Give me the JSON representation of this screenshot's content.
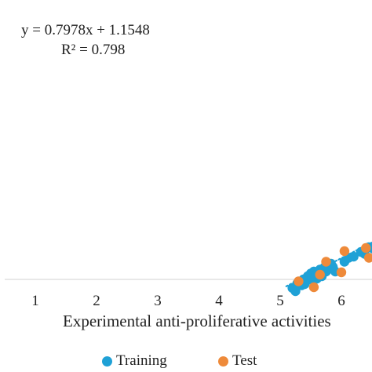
{
  "chart_data": {
    "type": "scatter",
    "xlabel": "Experimental anti-proliferative activities",
    "ylabel": "",
    "xticks": [
      1,
      2,
      3,
      4,
      5,
      6
    ],
    "xlim": [
      0.5,
      7.0
    ],
    "ylim": [
      0.0,
      7.0
    ],
    "grid": false,
    "legend_position": "bottom",
    "trendline": {
      "equation": "y = 0.7978x + 1.1548",
      "r_squared": "R² = 0.798",
      "slope": 0.7978,
      "intercept": 1.1548,
      "series": "Training"
    },
    "series": [
      {
        "name": "Training",
        "color": "#1fa1d6",
        "points": [
          {
            "x": 5.2,
            "y": 5.18
          },
          {
            "x": 5.28,
            "y": 5.3
          },
          {
            "x": 5.35,
            "y": 5.25
          },
          {
            "x": 5.38,
            "y": 5.4
          },
          {
            "x": 5.42,
            "y": 5.35
          },
          {
            "x": 5.45,
            "y": 5.48
          },
          {
            "x": 5.48,
            "y": 5.4
          },
          {
            "x": 5.5,
            "y": 5.55
          },
          {
            "x": 5.52,
            "y": 5.45
          },
          {
            "x": 5.55,
            "y": 5.6
          },
          {
            "x": 5.58,
            "y": 5.5
          },
          {
            "x": 5.6,
            "y": 5.42
          },
          {
            "x": 5.62,
            "y": 5.58
          },
          {
            "x": 5.65,
            "y": 5.65
          },
          {
            "x": 5.66,
            "y": 5.52
          },
          {
            "x": 5.7,
            "y": 5.62
          },
          {
            "x": 5.72,
            "y": 5.7
          },
          {
            "x": 5.75,
            "y": 5.6
          },
          {
            "x": 5.78,
            "y": 5.75
          },
          {
            "x": 5.8,
            "y": 5.68
          },
          {
            "x": 5.83,
            "y": 5.8
          },
          {
            "x": 5.86,
            "y": 5.72
          },
          {
            "x": 5.4,
            "y": 5.28
          },
          {
            "x": 5.55,
            "y": 5.38
          },
          {
            "x": 5.68,
            "y": 5.48
          },
          {
            "x": 6.05,
            "y": 5.85
          },
          {
            "x": 6.12,
            "y": 5.95
          },
          {
            "x": 6.2,
            "y": 5.98
          },
          {
            "x": 6.32,
            "y": 6.1
          },
          {
            "x": 6.38,
            "y": 6.05
          },
          {
            "x": 6.45,
            "y": 6.22
          },
          {
            "x": 6.52,
            "y": 6.18
          },
          {
            "x": 6.62,
            "y": 6.32
          },
          {
            "x": 5.25,
            "y": 5.1
          },
          {
            "x": 5.9,
            "y": 5.6
          }
        ]
      },
      {
        "name": "Test",
        "color": "#ee8a3a",
        "points": [
          {
            "x": 5.3,
            "y": 5.35
          },
          {
            "x": 5.55,
            "y": 5.2
          },
          {
            "x": 5.65,
            "y": 5.52
          },
          {
            "x": 5.75,
            "y": 5.85
          },
          {
            "x": 6.0,
            "y": 5.58
          },
          {
            "x": 6.05,
            "y": 6.12
          },
          {
            "x": 6.4,
            "y": 6.2
          },
          {
            "x": 6.45,
            "y": 5.95
          },
          {
            "x": 6.58,
            "y": 6.35
          },
          {
            "x": 6.85,
            "y": 5.8
          }
        ]
      }
    ]
  }
}
